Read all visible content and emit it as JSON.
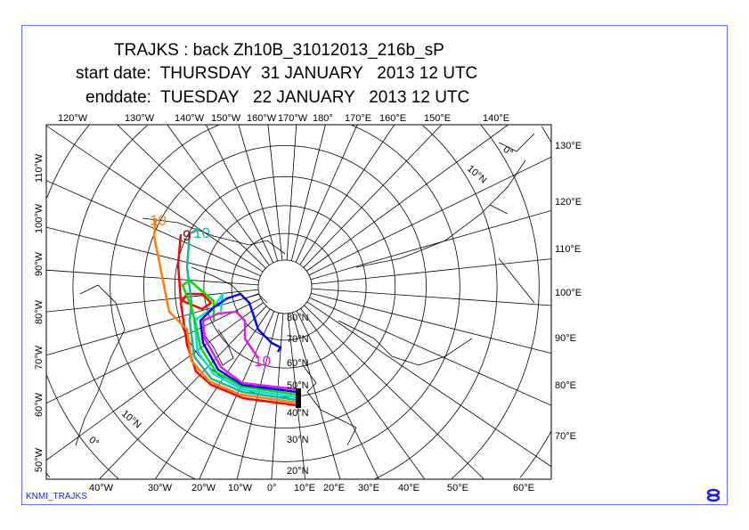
{
  "title": {
    "line1": "TRAJKS : back Zh10B_31012013_216b_sP",
    "line2": "start date:  THURSDAY  31 JANUARY   2013 12 UTC",
    "line3": "enddate:  TUESDAY   22 JANUARY   2013 12 UTC"
  },
  "top_labels": [
    "120°W",
    "130°W",
    "140°W",
    "150°W",
    "160°W",
    "170°W",
    "180°",
    "170°E",
    "160°E",
    "150°E",
    "140°E"
  ],
  "bottom_labels": [
    "40°W",
    "30°W",
    "20°W",
    "10°W",
    "0°",
    "10°E",
    "20°E",
    "30°E",
    "40°E",
    "50°E",
    "60°E"
  ],
  "left_labels": [
    "110°W",
    "100°W",
    "90°W",
    "80°W",
    "70°W",
    "60°W",
    "50°W"
  ],
  "right_labels": [
    "130°E",
    "120°E",
    "110°E",
    "100°E",
    "90°E",
    "80°E",
    "70°E"
  ],
  "lat_labels": [
    "80°N",
    "70°N",
    "60°N",
    "50°N",
    "40°N",
    "30°N",
    "20°N"
  ],
  "extra_labels": {
    "ten_n_top": "10°N",
    "zero_top": "0°",
    "ten_n_bottom": "10°N",
    "zero_bottom": "0°"
  },
  "trajectory_labels": [
    {
      "text": "10",
      "color": "#ff8000"
    },
    {
      "text": "9",
      "color": "#a00000"
    },
    {
      "text": "10",
      "color": "#20b0a0"
    },
    {
      "text": "10",
      "color": "#e020e0"
    }
  ],
  "trajectory_colors": [
    "#ff0000",
    "#ff8000",
    "#20b0a0",
    "#00e0e0",
    "#00e000",
    "#0000ff",
    "#e020e0"
  ],
  "footer": "KNMI_TRAJKS"
}
